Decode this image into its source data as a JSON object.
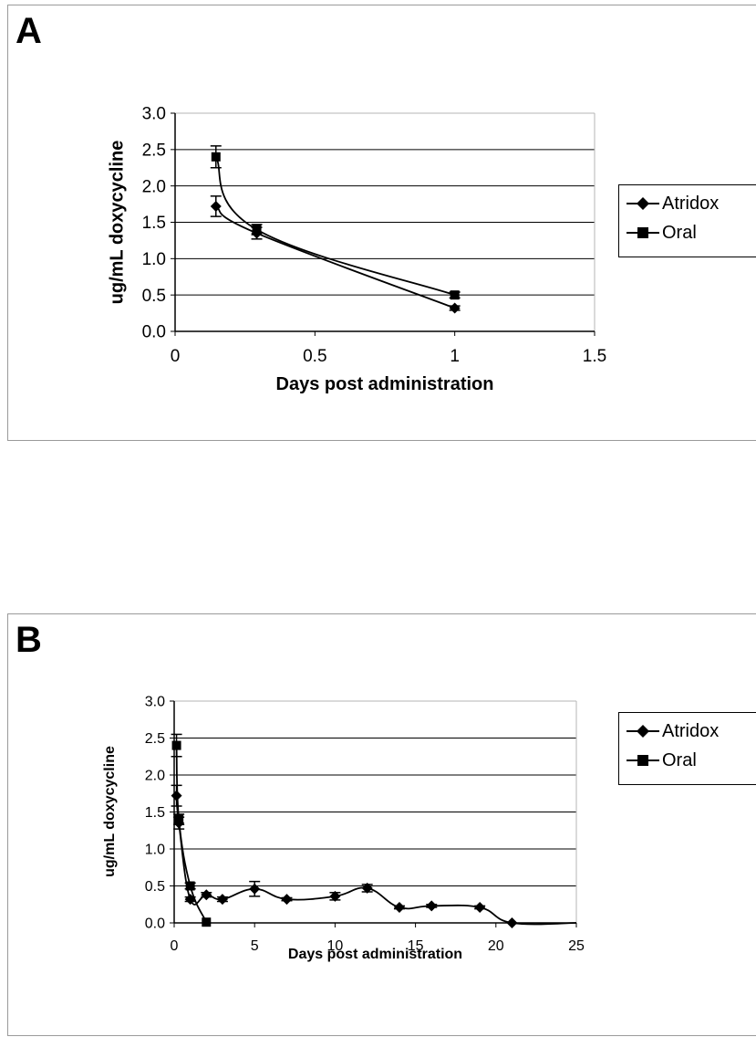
{
  "chart_data": [
    {
      "panel": "A",
      "type": "line",
      "xlabel": "Days post administration",
      "ylabel": "ug/mL doxycycline",
      "xlim": [
        0,
        1.5
      ],
      "ylim": [
        0,
        3.0
      ],
      "xticks": [
        "0",
        "0.5",
        "1",
        "1.5"
      ],
      "yticks": [
        "0.0",
        "0.5",
        "1.0",
        "1.5",
        "2.0",
        "2.5",
        "3.0"
      ],
      "grid": "horizontal",
      "legend_position": "right",
      "series": [
        {
          "name": "Atridox",
          "marker": "diamond",
          "x": [
            0.146,
            0.292,
            1.0
          ],
          "y": [
            1.72,
            1.35,
            0.32
          ],
          "err": [
            0.14,
            0.08,
            0.03
          ]
        },
        {
          "name": "Oral",
          "marker": "square",
          "x": [
            0.146,
            0.292,
            1.0
          ],
          "y": [
            2.4,
            1.4,
            0.5
          ],
          "err": [
            0.15,
            0.07,
            0.04
          ]
        }
      ]
    },
    {
      "panel": "B",
      "type": "line",
      "xlabel": "Days post administration",
      "ylabel": "ug/mL doxycycline",
      "xlim": [
        0,
        25
      ],
      "ylim": [
        0,
        3.0
      ],
      "xticks": [
        "0",
        "5",
        "10",
        "15",
        "20",
        "25"
      ],
      "yticks": [
        "0.0",
        "0.5",
        "1.0",
        "1.5",
        "2.0",
        "2.5",
        "3.0"
      ],
      "grid": "horizontal",
      "legend_position": "right",
      "series": [
        {
          "name": "Atridox",
          "marker": "diamond",
          "x": [
            0.146,
            0.292,
            1,
            2,
            3,
            5,
            7,
            10,
            12,
            14,
            16,
            19,
            21
          ],
          "y": [
            1.72,
            1.35,
            0.32,
            0.38,
            0.32,
            0.46,
            0.32,
            0.36,
            0.47,
            0.21,
            0.23,
            0.21,
            0.0
          ],
          "err": [
            0.14,
            0.08,
            0.03,
            0.03,
            0.03,
            0.1,
            0.02,
            0.05,
            0.05,
            0.02,
            0.02,
            0.02,
            0.0
          ],
          "tail_to": 25
        },
        {
          "name": "Oral",
          "marker": "square",
          "x": [
            0.146,
            0.292,
            1,
            2
          ],
          "y": [
            2.4,
            1.4,
            0.5,
            0.01
          ],
          "err": [
            0.15,
            0.07,
            0.04,
            0.0
          ]
        }
      ]
    }
  ]
}
